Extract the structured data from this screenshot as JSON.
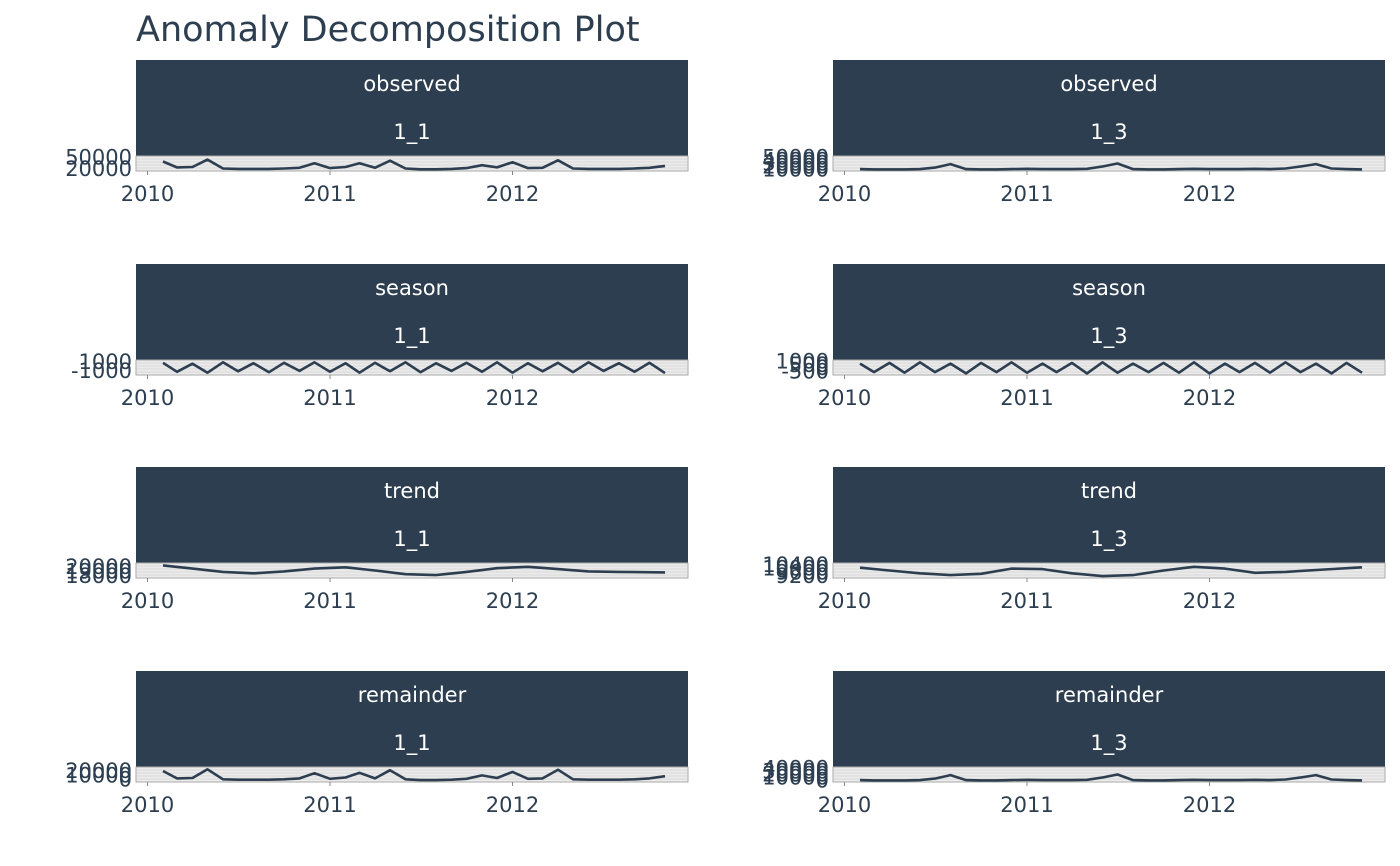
{
  "title": "Anomaly Decomposition Plot",
  "colors": {
    "strip": "#2c3e50",
    "line": "#2c3e50",
    "panel_bg": "#ebebeb",
    "grid": "#c8c8c8",
    "text": "#2c3e50"
  },
  "chart_data": [
    {
      "type": "line",
      "facet": "observed",
      "id": "1_1",
      "x": [
        "2010-02-01",
        "2010-03-01",
        "2010-04-01",
        "2010-05-01",
        "2010-06-01",
        "2010-07-01",
        "2010-08-01",
        "2010-09-01",
        "2010-10-01",
        "2010-11-01",
        "2010-12-01",
        "2011-01-01",
        "2011-02-01",
        "2011-03-01",
        "2011-04-01",
        "2011-05-01",
        "2011-06-01",
        "2011-07-01",
        "2011-08-01",
        "2011-09-01",
        "2011-10-01",
        "2011-11-01",
        "2011-12-01",
        "2012-01-01",
        "2012-02-01",
        "2012-03-01",
        "2012-04-01",
        "2012-05-01",
        "2012-06-01",
        "2012-07-01",
        "2012-08-01",
        "2012-09-01",
        "2012-10-01",
        "2012-11-01"
      ],
      "values": [
        40000,
        24000,
        25000,
        45000,
        21000,
        20000,
        20000,
        20000,
        21000,
        23000,
        35000,
        22000,
        25000,
        35000,
        23000,
        42000,
        21000,
        19000,
        19000,
        20000,
        22000,
        30000,
        24000,
        38000,
        22000,
        23000,
        43000,
        21000,
        20000,
        20000,
        20000,
        21000,
        23000,
        28000
      ],
      "y_ticks": [
        20000,
        50000
      ],
      "y_tick_labels": [
        "20000",
        "50000"
      ],
      "ylim": [
        17000,
        52000
      ],
      "x_ticks": [
        "2010",
        "2011",
        "2012"
      ]
    },
    {
      "type": "line",
      "facet": "observed",
      "id": "1_3",
      "x": [
        "2010-02-01",
        "2010-03-01",
        "2010-04-01",
        "2010-05-01",
        "2010-06-01",
        "2010-07-01",
        "2010-08-01",
        "2010-09-01",
        "2010-10-01",
        "2010-11-01",
        "2010-12-01",
        "2011-01-01",
        "2011-02-01",
        "2011-03-01",
        "2011-04-01",
        "2011-05-01",
        "2011-06-01",
        "2011-07-01",
        "2011-08-01",
        "2011-09-01",
        "2011-10-01",
        "2011-11-01",
        "2011-12-01",
        "2012-01-01",
        "2012-02-01",
        "2012-03-01",
        "2012-04-01",
        "2012-05-01",
        "2012-06-01",
        "2012-07-01",
        "2012-08-01",
        "2012-09-01",
        "2012-10-01",
        "2012-11-01"
      ],
      "values": [
        11000,
        10000,
        10000,
        10000,
        11000,
        16000,
        28000,
        11000,
        10000,
        10000,
        11000,
        12000,
        11000,
        11000,
        11000,
        12000,
        20000,
        30000,
        11000,
        10000,
        10000,
        11000,
        12000,
        11000,
        11000,
        11000,
        12000,
        11000,
        13000,
        20000,
        28000,
        13000,
        11000,
        10000
      ],
      "y_ticks": [
        10000,
        20000,
        30000,
        40000,
        50000
      ],
      "y_tick_labels": [
        "10000",
        "20000",
        "30000",
        "40000",
        "50000"
      ],
      "ylim": [
        8000,
        52000
      ],
      "x_ticks": [
        "2010",
        "2011",
        "2012"
      ]
    },
    {
      "type": "line",
      "facet": "season",
      "id": "1_1",
      "x": [
        "2010-02-01",
        "2010-03-01",
        "2010-04-01",
        "2010-05-01",
        "2010-06-01",
        "2010-07-01",
        "2010-08-01",
        "2010-09-01",
        "2010-10-01",
        "2010-11-01",
        "2010-12-01",
        "2011-01-01",
        "2011-02-01",
        "2011-03-01",
        "2011-04-01",
        "2011-05-01",
        "2011-06-01",
        "2011-07-01",
        "2011-08-01",
        "2011-09-01",
        "2011-10-01",
        "2011-11-01",
        "2011-12-01",
        "2012-01-01",
        "2012-02-01",
        "2012-03-01",
        "2012-04-01",
        "2012-05-01",
        "2012-06-01",
        "2012-07-01",
        "2012-08-01",
        "2012-09-01",
        "2012-10-01",
        "2012-11-01"
      ],
      "values": [
        800,
        -1200,
        600,
        -1400,
        900,
        -1100,
        700,
        -1300,
        800,
        -1000,
        900,
        -1200,
        700,
        -1400,
        800,
        -1100,
        900,
        -1300,
        700,
        -1000,
        800,
        -1200,
        900,
        -1400,
        700,
        -1100,
        800,
        -1300,
        900,
        -1000,
        700,
        -1200,
        800,
        -1500
      ],
      "y_ticks": [
        -1000,
        1000
      ],
      "y_tick_labels": [
        "-1000",
        "1000"
      ],
      "ylim": [
        -1700,
        1200
      ],
      "x_ticks": [
        "2010",
        "2011",
        "2012"
      ]
    },
    {
      "type": "line",
      "facet": "season",
      "id": "1_3",
      "x": [
        "2010-02-01",
        "2010-03-01",
        "2010-04-01",
        "2010-05-01",
        "2010-06-01",
        "2010-07-01",
        "2010-08-01",
        "2010-09-01",
        "2010-10-01",
        "2010-11-01",
        "2010-12-01",
        "2011-01-01",
        "2011-02-01",
        "2011-03-01",
        "2011-04-01",
        "2011-05-01",
        "2011-06-01",
        "2011-07-01",
        "2011-08-01",
        "2011-09-01",
        "2011-10-01",
        "2011-11-01",
        "2011-12-01",
        "2012-01-01",
        "2012-02-01",
        "2012-03-01",
        "2012-04-01",
        "2012-05-01",
        "2012-06-01",
        "2012-07-01",
        "2012-08-01",
        "2012-09-01",
        "2012-10-01",
        "2012-11-01"
      ],
      "values": [
        700,
        -600,
        800,
        -700,
        900,
        -600,
        700,
        -800,
        800,
        -600,
        900,
        -700,
        700,
        -600,
        800,
        -800,
        900,
        -700,
        700,
        -600,
        800,
        -700,
        900,
        -800,
        700,
        -600,
        800,
        -700,
        900,
        -600,
        700,
        -800,
        800,
        -700
      ],
      "y_ticks": [
        -500,
        0,
        500,
        1000
      ],
      "y_tick_labels": [
        "-500",
        "0",
        "500",
        "1000"
      ],
      "ylim": [
        -900,
        1100
      ],
      "x_ticks": [
        "2010",
        "2011",
        "2012"
      ]
    },
    {
      "type": "line",
      "facet": "trend",
      "id": "1_1",
      "x": [
        "2010-02-01",
        "2010-04-01",
        "2010-06-01",
        "2010-08-01",
        "2010-10-01",
        "2010-12-01",
        "2011-02-01",
        "2011-04-01",
        "2011-06-01",
        "2011-08-01",
        "2011-10-01",
        "2011-12-01",
        "2012-02-01",
        "2012-04-01",
        "2012-06-01",
        "2012-08-01",
        "2012-11-01"
      ],
      "values": [
        20300,
        19600,
        18900,
        18600,
        19000,
        19600,
        19900,
        19200,
        18400,
        18200,
        18900,
        19700,
        20000,
        19500,
        19000,
        18900,
        18800
      ],
      "y_ticks": [
        18000,
        19000,
        20000
      ],
      "y_tick_labels": [
        "18000",
        "19000",
        "20000"
      ],
      "ylim": [
        17800,
        20600
      ],
      "x_ticks": [
        "2010",
        "2011",
        "2012"
      ]
    },
    {
      "type": "line",
      "facet": "trend",
      "id": "1_3",
      "x": [
        "2010-02-01",
        "2010-04-01",
        "2010-06-01",
        "2010-08-01",
        "2010-10-01",
        "2010-12-01",
        "2011-02-01",
        "2011-04-01",
        "2011-06-01",
        "2011-08-01",
        "2011-10-01",
        "2011-12-01",
        "2012-02-01",
        "2012-04-01",
        "2012-06-01",
        "2012-08-01",
        "2012-11-01"
      ],
      "values": [
        10100,
        9800,
        9500,
        9300,
        9450,
        10000,
        9950,
        9500,
        9200,
        9300,
        9800,
        10200,
        10000,
        9550,
        9650,
        9850,
        10150
      ],
      "y_ticks": [
        9200,
        9600,
        10000,
        10400
      ],
      "y_tick_labels": [
        "9200",
        "9600",
        "10000",
        "10400"
      ],
      "ylim": [
        9100,
        10500
      ],
      "x_ticks": [
        "2010",
        "2011",
        "2012"
      ]
    },
    {
      "type": "line",
      "facet": "remainder",
      "id": "1_1",
      "x": [
        "2010-02-01",
        "2010-03-01",
        "2010-04-01",
        "2010-05-01",
        "2010-06-01",
        "2010-07-01",
        "2010-08-01",
        "2010-09-01",
        "2010-10-01",
        "2010-11-01",
        "2010-12-01",
        "2011-01-01",
        "2011-02-01",
        "2011-03-01",
        "2011-04-01",
        "2011-05-01",
        "2011-06-01",
        "2011-07-01",
        "2011-08-01",
        "2011-09-01",
        "2011-10-01",
        "2011-11-01",
        "2011-12-01",
        "2012-01-01",
        "2012-02-01",
        "2012-03-01",
        "2012-04-01",
        "2012-05-01",
        "2012-06-01",
        "2012-07-01",
        "2012-08-01",
        "2012-09-01",
        "2012-10-01",
        "2012-11-01"
      ],
      "values": [
        20000,
        3000,
        4000,
        24000,
        1000,
        0,
        0,
        0,
        1000,
        3000,
        15000,
        2000,
        5000,
        16000,
        3000,
        22000,
        1000,
        -1000,
        -1000,
        0,
        2000,
        10000,
        4000,
        18000,
        2000,
        3000,
        23000,
        1000,
        0,
        0,
        0,
        1000,
        3000,
        8000
      ],
      "y_ticks": [
        0,
        10000,
        20000
      ],
      "y_tick_labels": [
        "0",
        "10000",
        "20000"
      ],
      "ylim": [
        -3000,
        27000
      ],
      "x_ticks": [
        "2010",
        "2011",
        "2012"
      ]
    },
    {
      "type": "line",
      "facet": "remainder",
      "id": "1_3",
      "x": [
        "2010-02-01",
        "2010-03-01",
        "2010-04-01",
        "2010-05-01",
        "2010-06-01",
        "2010-07-01",
        "2010-08-01",
        "2010-09-01",
        "2010-10-01",
        "2010-11-01",
        "2010-12-01",
        "2011-01-01",
        "2011-02-01",
        "2011-03-01",
        "2011-04-01",
        "2011-05-01",
        "2011-06-01",
        "2011-07-01",
        "2011-08-01",
        "2011-09-01",
        "2011-10-01",
        "2011-11-01",
        "2011-12-01",
        "2012-01-01",
        "2012-02-01",
        "2012-03-01",
        "2012-04-01",
        "2012-05-01",
        "2012-06-01",
        "2012-07-01",
        "2012-08-01",
        "2012-09-01",
        "2012-10-01",
        "2012-11-01"
      ],
      "values": [
        1000,
        0,
        0,
        0,
        1000,
        6000,
        18000,
        1000,
        0,
        0,
        1000,
        2000,
        1000,
        1000,
        1000,
        2000,
        10000,
        20000,
        1000,
        0,
        0,
        1000,
        2000,
        1000,
        1000,
        1000,
        2000,
        1000,
        3000,
        10000,
        18000,
        3000,
        1000,
        0
      ],
      "y_ticks": [
        0,
        10000,
        20000,
        30000,
        40000
      ],
      "y_tick_labels": [
        "0",
        "10000",
        "20000",
        "30000",
        "40000"
      ],
      "ylim": [
        -2000,
        42000
      ],
      "x_ticks": [
        "2010",
        "2011",
        "2012"
      ]
    }
  ]
}
